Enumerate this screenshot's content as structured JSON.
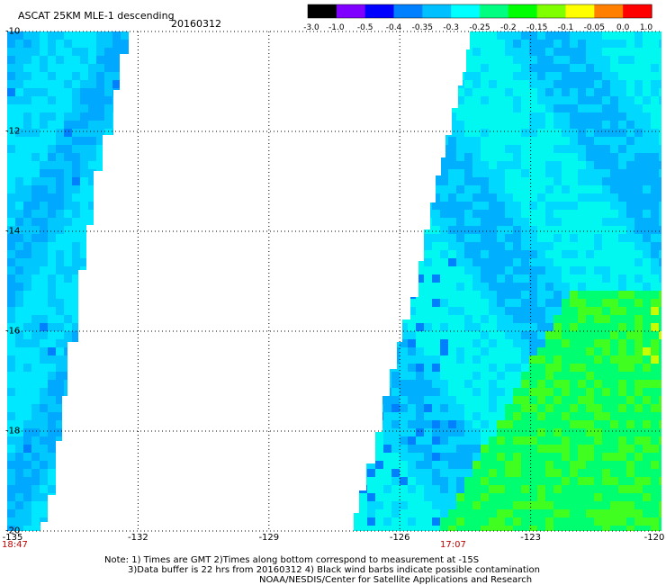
{
  "header": {
    "title": "ASCAT 25KM MLE-1 descending",
    "date": "20160312"
  },
  "colorbar": {
    "labels": [
      "-3.0",
      "-1.0",
      "-0.5",
      "-0.4",
      "-0.35",
      "-0.3",
      "-0.25",
      "-0.2",
      "-0.15",
      "-0.1",
      "-0.05",
      "0.0",
      "1.0"
    ],
    "colors": [
      "#000000",
      "#8000ff",
      "#0000ff",
      "#0080ff",
      "#00c0ff",
      "#00ffff",
      "#00ff80",
      "#00ff00",
      "#80ff00",
      "#ffff00",
      "#ff8000",
      "#ff0000"
    ]
  },
  "axes": {
    "x_ticks": [
      "-135",
      "-132",
      "-129",
      "-126",
      "-123",
      "-120"
    ],
    "y_ticks": [
      "-10",
      "-12",
      "-14",
      "-16",
      "-18",
      "-20"
    ],
    "xlim": [
      -135,
      -120
    ],
    "ylim": [
      -20,
      -10
    ]
  },
  "swath_times": {
    "left": "18:47",
    "right": "17:07"
  },
  "notes": {
    "line1": "Note: 1) Times are GMT 2)Times along bottom correspond to measurement at -15S",
    "line2": "3)Data buffer is 22 hrs from 20160312 4) Black wind barbs indicate possible contamination",
    "line3": "NOAA/NESDIS/Center for Satellite Applications and Research"
  }
}
